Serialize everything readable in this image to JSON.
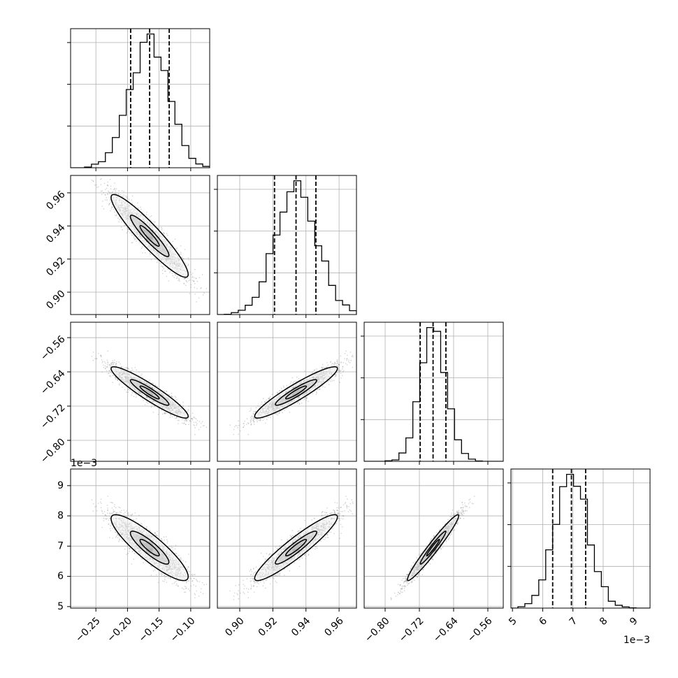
{
  "chart_data": {
    "type": "corner",
    "title": "",
    "n_params": 4,
    "parameters": [
      {
        "index": 0,
        "label": "",
        "median": -0.165,
        "quantiles": [
          -0.195,
          -0.165,
          -0.134
        ],
        "range": [
          -0.29,
          -0.07
        ],
        "ticks": [
          -0.25,
          -0.2,
          -0.15,
          -0.1
        ],
        "tick_labels": [
          "−0.25",
          "−0.20",
          "−0.15",
          "−0.10"
        ],
        "scale_label": ""
      },
      {
        "index": 1,
        "label": "",
        "median": 0.934,
        "quantiles": [
          0.921,
          0.934,
          0.946
        ],
        "range": [
          0.8865,
          0.9705
        ],
        "ticks": [
          0.9,
          0.92,
          0.94,
          0.96
        ],
        "tick_labels": [
          "0.90",
          "0.92",
          "0.94",
          "0.96"
        ],
        "scale_label": ""
      },
      {
        "index": 2,
        "label": "",
        "median": -0.688,
        "quantiles": [
          -0.718,
          -0.688,
          -0.658
        ],
        "range": [
          -0.849,
          -0.524
        ],
        "ticks": [
          -0.8,
          -0.72,
          -0.64,
          -0.56
        ],
        "tick_labels": [
          "−0.80",
          "−0.72",
          "−0.64",
          "−0.56"
        ],
        "scale_label": ""
      },
      {
        "index": 3,
        "label": "",
        "median": 6.95,
        "quantiles": [
          6.33,
          6.95,
          7.42
        ],
        "range": [
          4.95,
          9.55
        ],
        "ticks": [
          5,
          6,
          7,
          8,
          9
        ],
        "tick_labels": [
          "5",
          "6",
          "7",
          "8",
          "9"
        ],
        "scale_label": "1e−3"
      }
    ],
    "correlations": {
      "1,0": -0.93,
      "2,0": -0.93,
      "2,1": 0.93,
      "3,0": -0.88,
      "3,1": 0.93,
      "3,2": 0.97
    },
    "histogram_bins": 20,
    "contour_levels_sigma": [
      1,
      2
    ],
    "grid": true,
    "colors": {
      "line": "#000000",
      "points": "#7f7f7f",
      "grid": "#b0b0b0"
    }
  }
}
